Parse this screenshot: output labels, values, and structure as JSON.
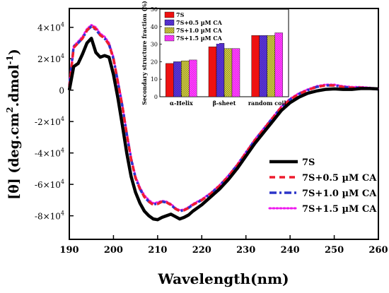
{
  "colors": {
    "7S": "#000000",
    "7S+0.5 µM CA": "#ee1c2e",
    "7S+1.0 µM CA": "#2b35c9",
    "7S+1.5 µM CA": "#ee18ee"
  },
  "chart_data": [
    {
      "type": "line",
      "xlabel": "Wavelength(nm)",
      "ylabel": "[θ] (deg.cm²dmol⁻¹)",
      "ylabel_parts": [
        "[θ] (deg.cm",
        "2",
        ".dmol",
        "-1",
        ")"
      ],
      "xlim": [
        190,
        260
      ],
      "ylim": [
        -95000,
        52000
      ],
      "xticks": [
        190,
        200,
        210,
        220,
        230,
        240,
        250,
        260
      ],
      "yticks": [
        40000,
        20000,
        0,
        -20000,
        -40000,
        -60000,
        -80000
      ],
      "ytick_labels": [
        {
          "base": "4×10",
          "exp": "4"
        },
        {
          "base": "2×10",
          "exp": "4"
        },
        {
          "base": "0",
          "exp": ""
        },
        {
          "base": "-2×10",
          "exp": "4"
        },
        {
          "base": "-4×10",
          "exp": "4"
        },
        {
          "base": "-6×10",
          "exp": "4"
        },
        {
          "base": "-8×10",
          "exp": "4"
        }
      ],
      "legend": "bottom-right",
      "series": [
        {
          "name": "7S",
          "style": "solid",
          "x": [
            190,
            191,
            192,
            193,
            194,
            195,
            196,
            197,
            198,
            199,
            200,
            201,
            202,
            203,
            204,
            205,
            206,
            207,
            208,
            209,
            210,
            211,
            212,
            213,
            214,
            215,
            216,
            217,
            218,
            220,
            222,
            224,
            226,
            228,
            230,
            232,
            234,
            236,
            238,
            240,
            242,
            244,
            246,
            248,
            250,
            252,
            254,
            256,
            258,
            260
          ],
          "y": [
            0,
            15000,
            17000,
            23000,
            30000,
            33000,
            24000,
            21000,
            22000,
            21000,
            10000,
            -5000,
            -22000,
            -40000,
            -55000,
            -65000,
            -72000,
            -77000,
            -80000,
            -82000,
            -82500,
            -81000,
            -80000,
            -79000,
            -80500,
            -82000,
            -81000,
            -79500,
            -77000,
            -73000,
            -68000,
            -63000,
            -57000,
            -50000,
            -42000,
            -34000,
            -27000,
            -20000,
            -13000,
            -8000,
            -4500,
            -2000,
            -500,
            500,
            800,
            500,
            500,
            1000,
            1000,
            800
          ]
        },
        {
          "name": "7S+0.5 µM CA",
          "style": "dash",
          "x": [
            190,
            191,
            192,
            193,
            194,
            195,
            196,
            197,
            198,
            199,
            200,
            201,
            202,
            203,
            204,
            205,
            206,
            207,
            208,
            209,
            210,
            211,
            212,
            213,
            214,
            215,
            216,
            217,
            218,
            220,
            222,
            224,
            226,
            228,
            230,
            232,
            234,
            236,
            238,
            240,
            242,
            244,
            246,
            248,
            250,
            252,
            254,
            256,
            258,
            260
          ],
          "y": [
            2000,
            27000,
            30000,
            33000,
            38000,
            41000,
            39000,
            35000,
            33000,
            29000,
            20000,
            5000,
            -10000,
            -28000,
            -44000,
            -56000,
            -63000,
            -68000,
            -71000,
            -73000,
            -72500,
            -71000,
            -71500,
            -73000,
            -75500,
            -77000,
            -76500,
            -75000,
            -73000,
            -70000,
            -66000,
            -61000,
            -55000,
            -48000,
            -40000,
            -32000,
            -25000,
            -18000,
            -11000,
            -6000,
            -2500,
            0,
            2000,
            3000,
            3000,
            2000,
            1500,
            1500,
            1000,
            500
          ]
        },
        {
          "name": "7S+1.0 µM CA",
          "style": "dashdot",
          "x": [
            190,
            191,
            192,
            193,
            194,
            195,
            196,
            197,
            198,
            199,
            200,
            201,
            202,
            203,
            204,
            205,
            206,
            207,
            208,
            209,
            210,
            211,
            212,
            213,
            214,
            215,
            216,
            217,
            218,
            220,
            222,
            224,
            226,
            228,
            230,
            232,
            234,
            236,
            238,
            240,
            242,
            244,
            246,
            248,
            250,
            252,
            254,
            256,
            258,
            260
          ],
          "y": [
            3000,
            28000,
            30000,
            33000,
            38000,
            40500,
            38500,
            35000,
            33000,
            29000,
            20000,
            5000,
            -10000,
            -28000,
            -44000,
            -56000,
            -63000,
            -68000,
            -71000,
            -73000,
            -72000,
            -71000,
            -71500,
            -73000,
            -75500,
            -77000,
            -76500,
            -75000,
            -73000,
            -70000,
            -66000,
            -61000,
            -55000,
            -48000,
            -40000,
            -32000,
            -25000,
            -18000,
            -11000,
            -6000,
            -2500,
            0,
            2000,
            3000,
            3000,
            2000,
            1500,
            1500,
            1000,
            500
          ]
        },
        {
          "name": "7S+1.5 µM CA",
          "style": "dot",
          "x": [
            190,
            191,
            192,
            193,
            194,
            195,
            196,
            197,
            198,
            199,
            200,
            201,
            202,
            203,
            204,
            205,
            206,
            207,
            208,
            209,
            210,
            211,
            212,
            213,
            214,
            215,
            216,
            217,
            218,
            220,
            222,
            224,
            226,
            228,
            230,
            232,
            234,
            236,
            238,
            240,
            242,
            244,
            246,
            248,
            250,
            252,
            254,
            256,
            258,
            260
          ],
          "y": [
            3000,
            28000,
            31000,
            34000,
            39000,
            41500,
            40000,
            36000,
            34000,
            30000,
            21000,
            6000,
            -9000,
            -27000,
            -43000,
            -55000,
            -62000,
            -67000,
            -70000,
            -72000,
            -71500,
            -70500,
            -71000,
            -72500,
            -75000,
            -76500,
            -76000,
            -74500,
            -72500,
            -69500,
            -65500,
            -60500,
            -54500,
            -47500,
            -39500,
            -31500,
            -24500,
            -17500,
            -10500,
            -5500,
            -2000,
            500,
            2500,
            3500,
            3500,
            2500,
            2000,
            2000,
            1500,
            1000
          ]
        }
      ]
    },
    {
      "type": "bar",
      "ylabel": "Secondary structure fraction (%)",
      "categories": [
        "α-Helix",
        "β-sheet",
        "random coil"
      ],
      "ylim": [
        0,
        50
      ],
      "yticks": [
        0,
        10,
        20,
        30,
        40,
        50
      ],
      "legend": "top-left",
      "series": [
        {
          "name": "7S",
          "values": [
            19,
            28.5,
            35
          ]
        },
        {
          "name": "7S+0.5 µM CA",
          "values": [
            20,
            30.5,
            35
          ]
        },
        {
          "name": "7S+1.0 µM CA",
          "values": [
            20.5,
            27.5,
            35
          ]
        },
        {
          "name": "7S+1.5 µM CA",
          "values": [
            21,
            27.5,
            36.5
          ]
        }
      ]
    }
  ]
}
